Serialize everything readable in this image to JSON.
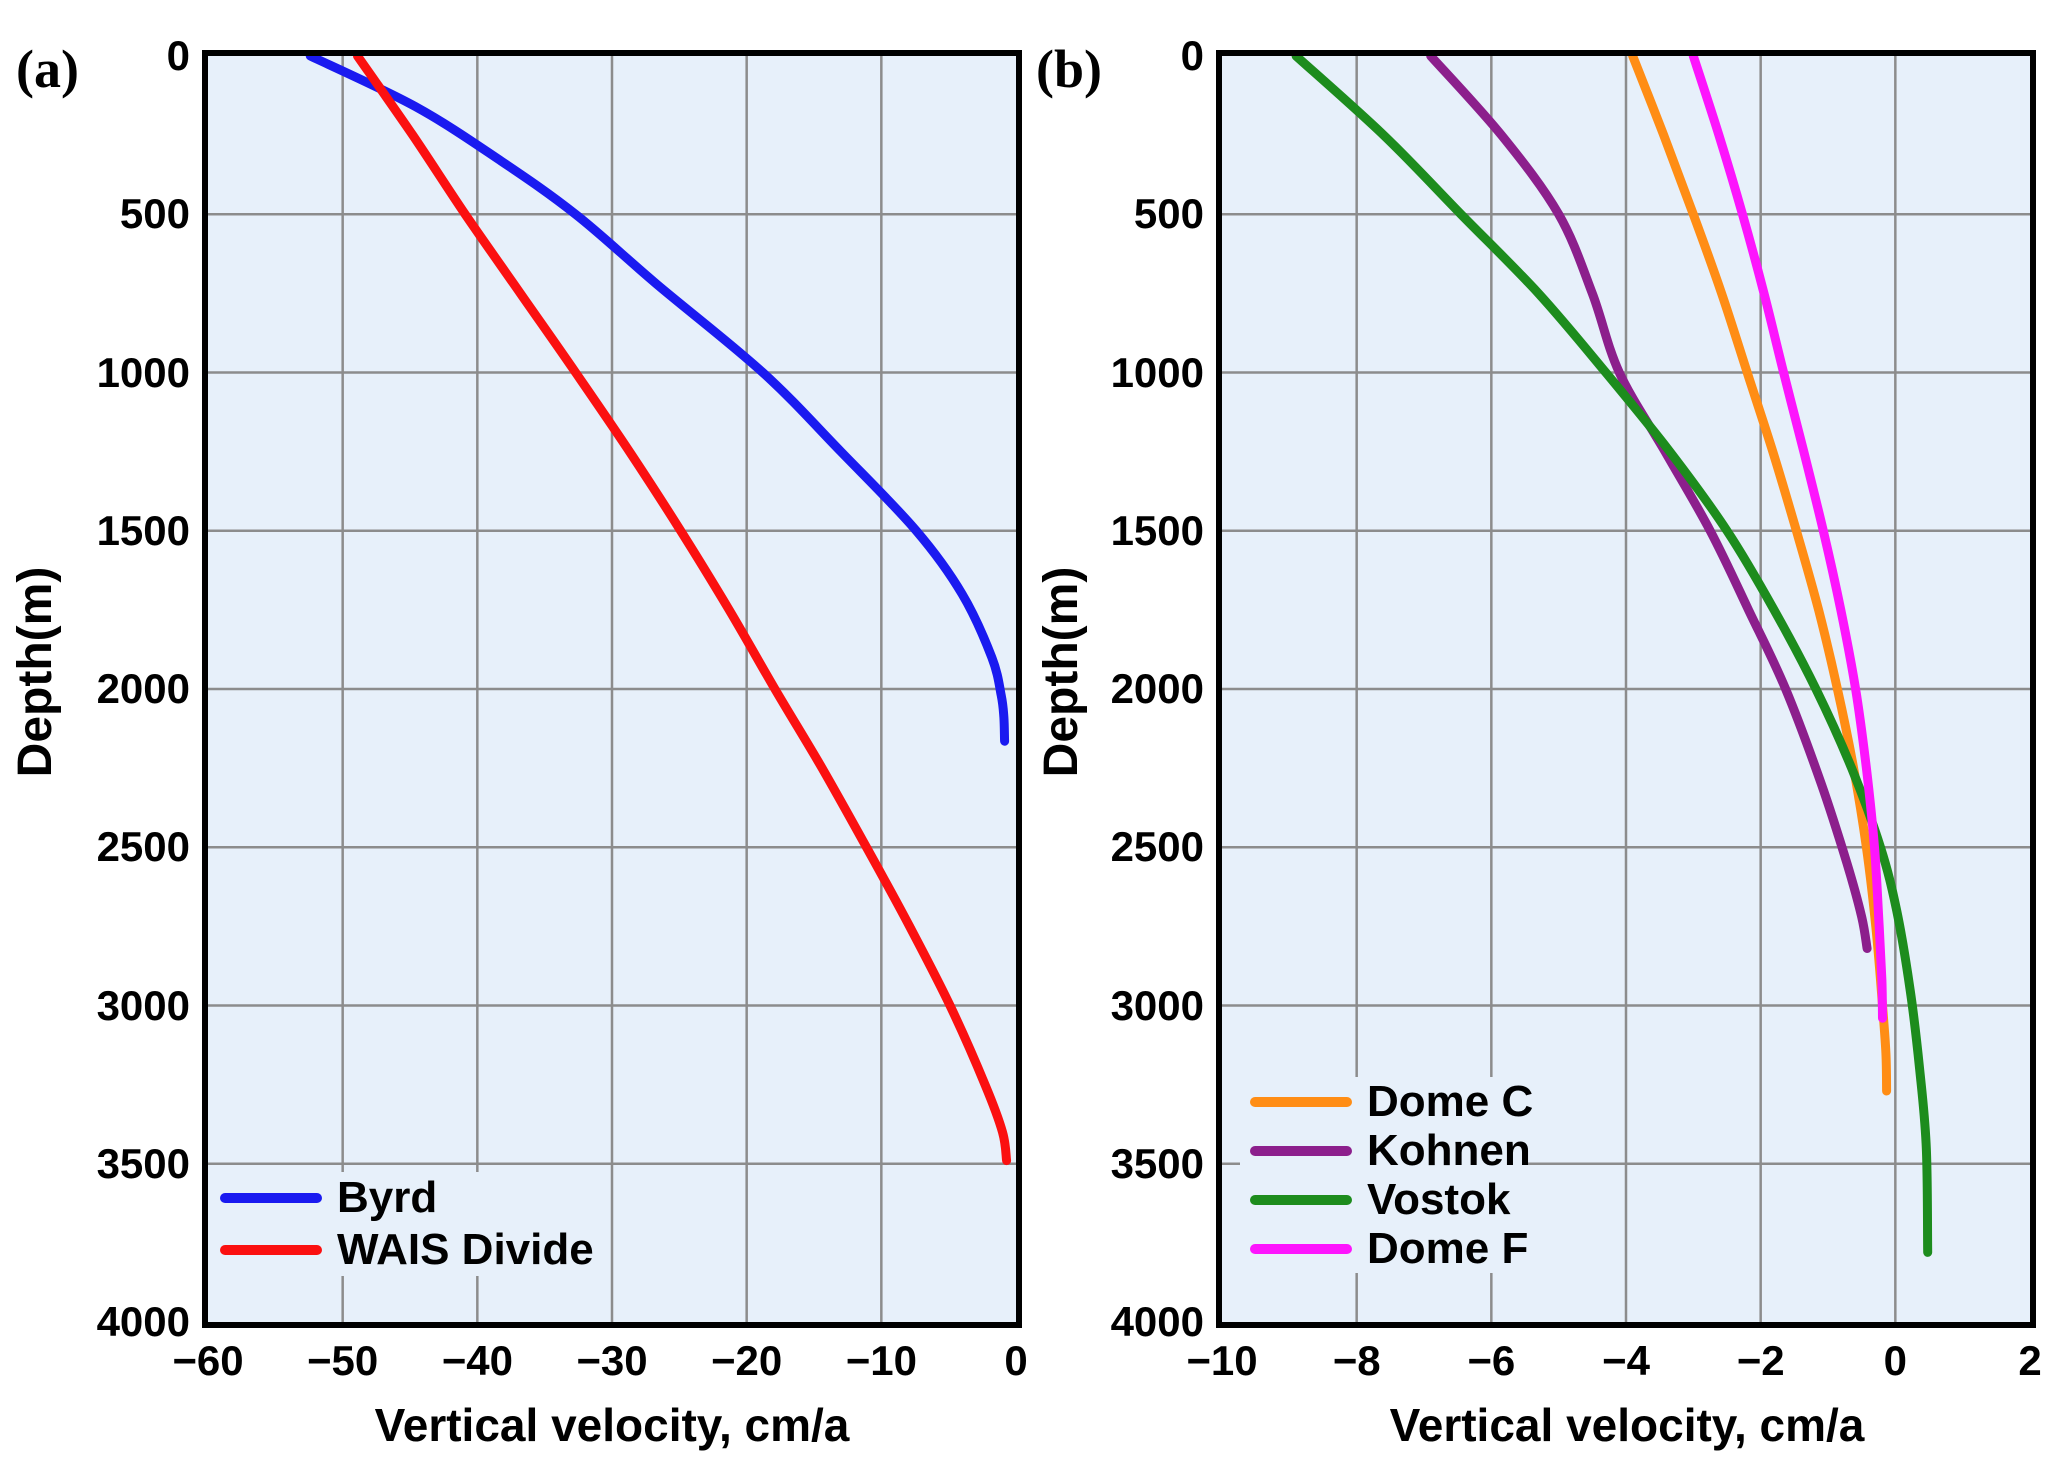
{
  "figure": {
    "background": "#ffffff",
    "plot_background": "#e7f0fa",
    "grid_color": "#8c8c8c",
    "frame_color": "#000000",
    "text_color": "#000000"
  },
  "chart_data": [
    {
      "type": "line",
      "panel_label": "(a)",
      "xlabel": "Vertical velocity, cm/a",
      "ylabel": "Depth(m)",
      "xlim": [
        -60,
        0
      ],
      "ylim": [
        0,
        4000
      ],
      "y_inverted": true,
      "grid": true,
      "x_ticks": [
        -60,
        -50,
        -40,
        -30,
        -20,
        -10,
        0
      ],
      "y_ticks": [
        0,
        500,
        1000,
        1500,
        2000,
        2500,
        3000,
        3500,
        4000
      ],
      "legend_position": "inside-bottom-left",
      "point_format": "[vertical_velocity_cm_per_a, depth_m]",
      "series": [
        {
          "name": "Byrd",
          "color": "#1a1af0",
          "points": [
            [
              -52.4,
              0
            ],
            [
              -44.6,
              160
            ],
            [
              -38.3,
              330
            ],
            [
              -32.7,
              500
            ],
            [
              -26.7,
              720
            ],
            [
              -18.8,
              1000
            ],
            [
              -13.0,
              1250
            ],
            [
              -7.4,
              1500
            ],
            [
              -4.0,
              1700
            ],
            [
              -1.8,
              1900
            ],
            [
              -1.1,
              2020
            ],
            [
              -0.9,
              2090
            ],
            [
              -0.85,
              2165
            ]
          ]
        },
        {
          "name": "WAIS Divide",
          "color": "#fb1010",
          "points": [
            [
              -48.9,
              0
            ],
            [
              -44.8,
              250
            ],
            [
              -40.9,
              500
            ],
            [
              -36.8,
              750
            ],
            [
              -32.7,
              1000
            ],
            [
              -28.7,
              1250
            ],
            [
              -24.9,
              1500
            ],
            [
              -21.3,
              1750
            ],
            [
              -17.9,
              2000
            ],
            [
              -14.4,
              2250
            ],
            [
              -11.1,
              2500
            ],
            [
              -7.9,
              2750
            ],
            [
              -4.9,
              3000
            ],
            [
              -2.3,
              3250
            ],
            [
              -1.0,
              3400
            ],
            [
              -0.7,
              3490
            ]
          ]
        }
      ]
    },
    {
      "type": "line",
      "panel_label": "(b)",
      "xlabel": "Vertical velocity, cm/a",
      "ylabel": "Depth(m)",
      "xlim": [
        -10,
        2
      ],
      "ylim": [
        0,
        4000
      ],
      "y_inverted": true,
      "grid": true,
      "x_ticks": [
        -10,
        -8,
        -6,
        -4,
        -2,
        0,
        2
      ],
      "y_ticks": [
        0,
        500,
        1000,
        1500,
        2000,
        2500,
        3000,
        3500,
        4000
      ],
      "legend_position": "inside-bottom-left",
      "point_format": "[vertical_velocity_cm_per_a, depth_m]",
      "series": [
        {
          "name": "Dome C",
          "color": "#ff8d15",
          "points": [
            [
              -3.9,
              0
            ],
            [
              -3.44,
              250
            ],
            [
              -3.0,
              500
            ],
            [
              -2.58,
              750
            ],
            [
              -2.2,
              1000
            ],
            [
              -1.82,
              1250
            ],
            [
              -1.47,
              1500
            ],
            [
              -1.14,
              1750
            ],
            [
              -0.86,
              2000
            ],
            [
              -0.62,
              2250
            ],
            [
              -0.43,
              2500
            ],
            [
              -0.29,
              2750
            ],
            [
              -0.19,
              3000
            ],
            [
              -0.14,
              3150
            ],
            [
              -0.13,
              3270
            ]
          ]
        },
        {
          "name": "Kohnen",
          "color": "#8c1f8c",
          "points": [
            [
              -6.9,
              0
            ],
            [
              -5.85,
              250
            ],
            [
              -5.0,
              500
            ],
            [
              -4.5,
              750
            ],
            [
              -4.1,
              1000
            ],
            [
              -3.42,
              1250
            ],
            [
              -2.75,
              1500
            ],
            [
              -2.18,
              1750
            ],
            [
              -1.63,
              2000
            ],
            [
              -1.1,
              2300
            ],
            [
              -0.72,
              2550
            ],
            [
              -0.5,
              2720
            ],
            [
              -0.42,
              2820
            ]
          ]
        },
        {
          "name": "Vostok",
          "color": "#1d8c1d",
          "points": [
            [
              -8.9,
              0
            ],
            [
              -7.6,
              250
            ],
            [
              -6.45,
              500
            ],
            [
              -5.3,
              750
            ],
            [
              -4.3,
              1000
            ],
            [
              -3.35,
              1250
            ],
            [
              -2.5,
              1500
            ],
            [
              -1.8,
              1750
            ],
            [
              -1.18,
              2000
            ],
            [
              -0.65,
              2250
            ],
            [
              -0.22,
              2500
            ],
            [
              0.02,
              2700
            ],
            [
              0.22,
              2950
            ],
            [
              0.36,
              3200
            ],
            [
              0.46,
              3450
            ],
            [
              0.48,
              3780
            ]
          ]
        },
        {
          "name": "Dome F",
          "color": "#fd15fd",
          "points": [
            [
              -3.0,
              0
            ],
            [
              -2.62,
              250
            ],
            [
              -2.27,
              500
            ],
            [
              -1.95,
              750
            ],
            [
              -1.66,
              1000
            ],
            [
              -1.36,
              1250
            ],
            [
              -1.07,
              1500
            ],
            [
              -0.81,
              1750
            ],
            [
              -0.59,
              2000
            ],
            [
              -0.43,
              2250
            ],
            [
              -0.31,
              2500
            ],
            [
              -0.24,
              2750
            ],
            [
              -0.2,
              2920
            ],
            [
              -0.19,
              3040
            ]
          ]
        }
      ]
    }
  ]
}
